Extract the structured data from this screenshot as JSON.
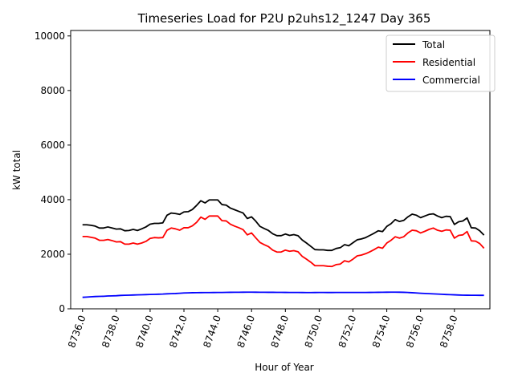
{
  "chart_data": {
    "type": "line",
    "title": "Timeseries Load for P2U p2uhs12_1247  Day 365",
    "xlabel": "Hour of Year",
    "ylabel": "kW total",
    "xlim": [
      8735.3,
      8760.1
    ],
    "ylim": [
      0,
      10200
    ],
    "xticks": [
      8736,
      8738,
      8740,
      8742,
      8744,
      8746,
      8748,
      8750,
      8752,
      8754,
      8756,
      8758
    ],
    "xtick_labels": [
      "8736.0",
      "8738.0",
      "8740.0",
      "8742.0",
      "8744.0",
      "8746.0",
      "8748.0",
      "8750.0",
      "8752.0",
      "8754.0",
      "8756.0",
      "8758.0"
    ],
    "yticks": [
      0,
      2000,
      4000,
      6000,
      8000,
      10000
    ],
    "ytick_labels": [
      "0",
      "2000",
      "4000",
      "6000",
      "8000",
      "10000"
    ],
    "x_start": 8736.0,
    "x_step": 0.25,
    "legend_position": "top-right",
    "series": [
      {
        "name": "Total",
        "color": "#000000",
        "values": [
          3080,
          3080,
          3060,
          3030,
          2960,
          2960,
          3000,
          2960,
          2920,
          2930,
          2860,
          2870,
          2910,
          2870,
          2930,
          3000,
          3100,
          3130,
          3130,
          3150,
          3430,
          3510,
          3490,
          3460,
          3550,
          3560,
          3640,
          3790,
          3960,
          3880,
          3990,
          3990,
          3990,
          3820,
          3800,
          3690,
          3630,
          3570,
          3510,
          3310,
          3370,
          3210,
          3020,
          2940,
          2870,
          2750,
          2680,
          2680,
          2740,
          2690,
          2720,
          2680,
          2520,
          2410,
          2290,
          2170,
          2160,
          2160,
          2140,
          2140,
          2210,
          2240,
          2350,
          2310,
          2420,
          2530,
          2560,
          2610,
          2690,
          2770,
          2860,
          2830,
          3020,
          3120,
          3270,
          3200,
          3240,
          3370,
          3470,
          3430,
          3340,
          3400,
          3460,
          3480,
          3400,
          3340,
          3390,
          3380,
          3090,
          3190,
          3220,
          3330,
          2970,
          2960,
          2860,
          2700
        ]
      },
      {
        "name": "Residential",
        "color": "#ff0000",
        "values": [
          2650,
          2650,
          2620,
          2590,
          2510,
          2510,
          2540,
          2500,
          2450,
          2460,
          2370,
          2370,
          2410,
          2370,
          2410,
          2470,
          2580,
          2610,
          2600,
          2610,
          2880,
          2960,
          2930,
          2880,
          2970,
          2970,
          3040,
          3170,
          3360,
          3280,
          3400,
          3400,
          3400,
          3230,
          3220,
          3100,
          3030,
          2970,
          2900,
          2710,
          2780,
          2600,
          2430,
          2350,
          2280,
          2150,
          2080,
          2080,
          2150,
          2110,
          2130,
          2090,
          1920,
          1820,
          1710,
          1580,
          1580,
          1580,
          1560,
          1550,
          1620,
          1640,
          1760,
          1720,
          1820,
          1940,
          1970,
          2020,
          2090,
          2170,
          2260,
          2220,
          2410,
          2510,
          2640,
          2590,
          2640,
          2780,
          2880,
          2860,
          2780,
          2840,
          2910,
          2960,
          2880,
          2840,
          2890,
          2880,
          2590,
          2690,
          2710,
          2830,
          2490,
          2480,
          2390,
          2220
        ]
      },
      {
        "name": "Commercial",
        "color": "#0000ff",
        "values": [
          420,
          430,
          440,
          450,
          455,
          460,
          470,
          475,
          480,
          490,
          495,
          500,
          505,
          510,
          515,
          520,
          525,
          530,
          535,
          540,
          550,
          555,
          560,
          570,
          580,
          585,
          590,
          592,
          593,
          595,
          596,
          597,
          598,
          600,
          602,
          604,
          606,
          607,
          608,
          609,
          609,
          608,
          607,
          606,
          605,
          604,
          603,
          602,
          601,
          600,
          599,
          598,
          597,
          596,
          596,
          597,
          598,
          598,
          597,
          597,
          598,
          599,
          600,
          600,
          600,
          600,
          600,
          600,
          601,
          602,
          604,
          606,
          608,
          610,
          610,
          608,
          604,
          598,
          590,
          580,
          570,
          563,
          556,
          548,
          540,
          532,
          524,
          518,
          512,
          506,
          500,
          498,
          496,
          495,
          494,
          494
        ]
      }
    ]
  }
}
